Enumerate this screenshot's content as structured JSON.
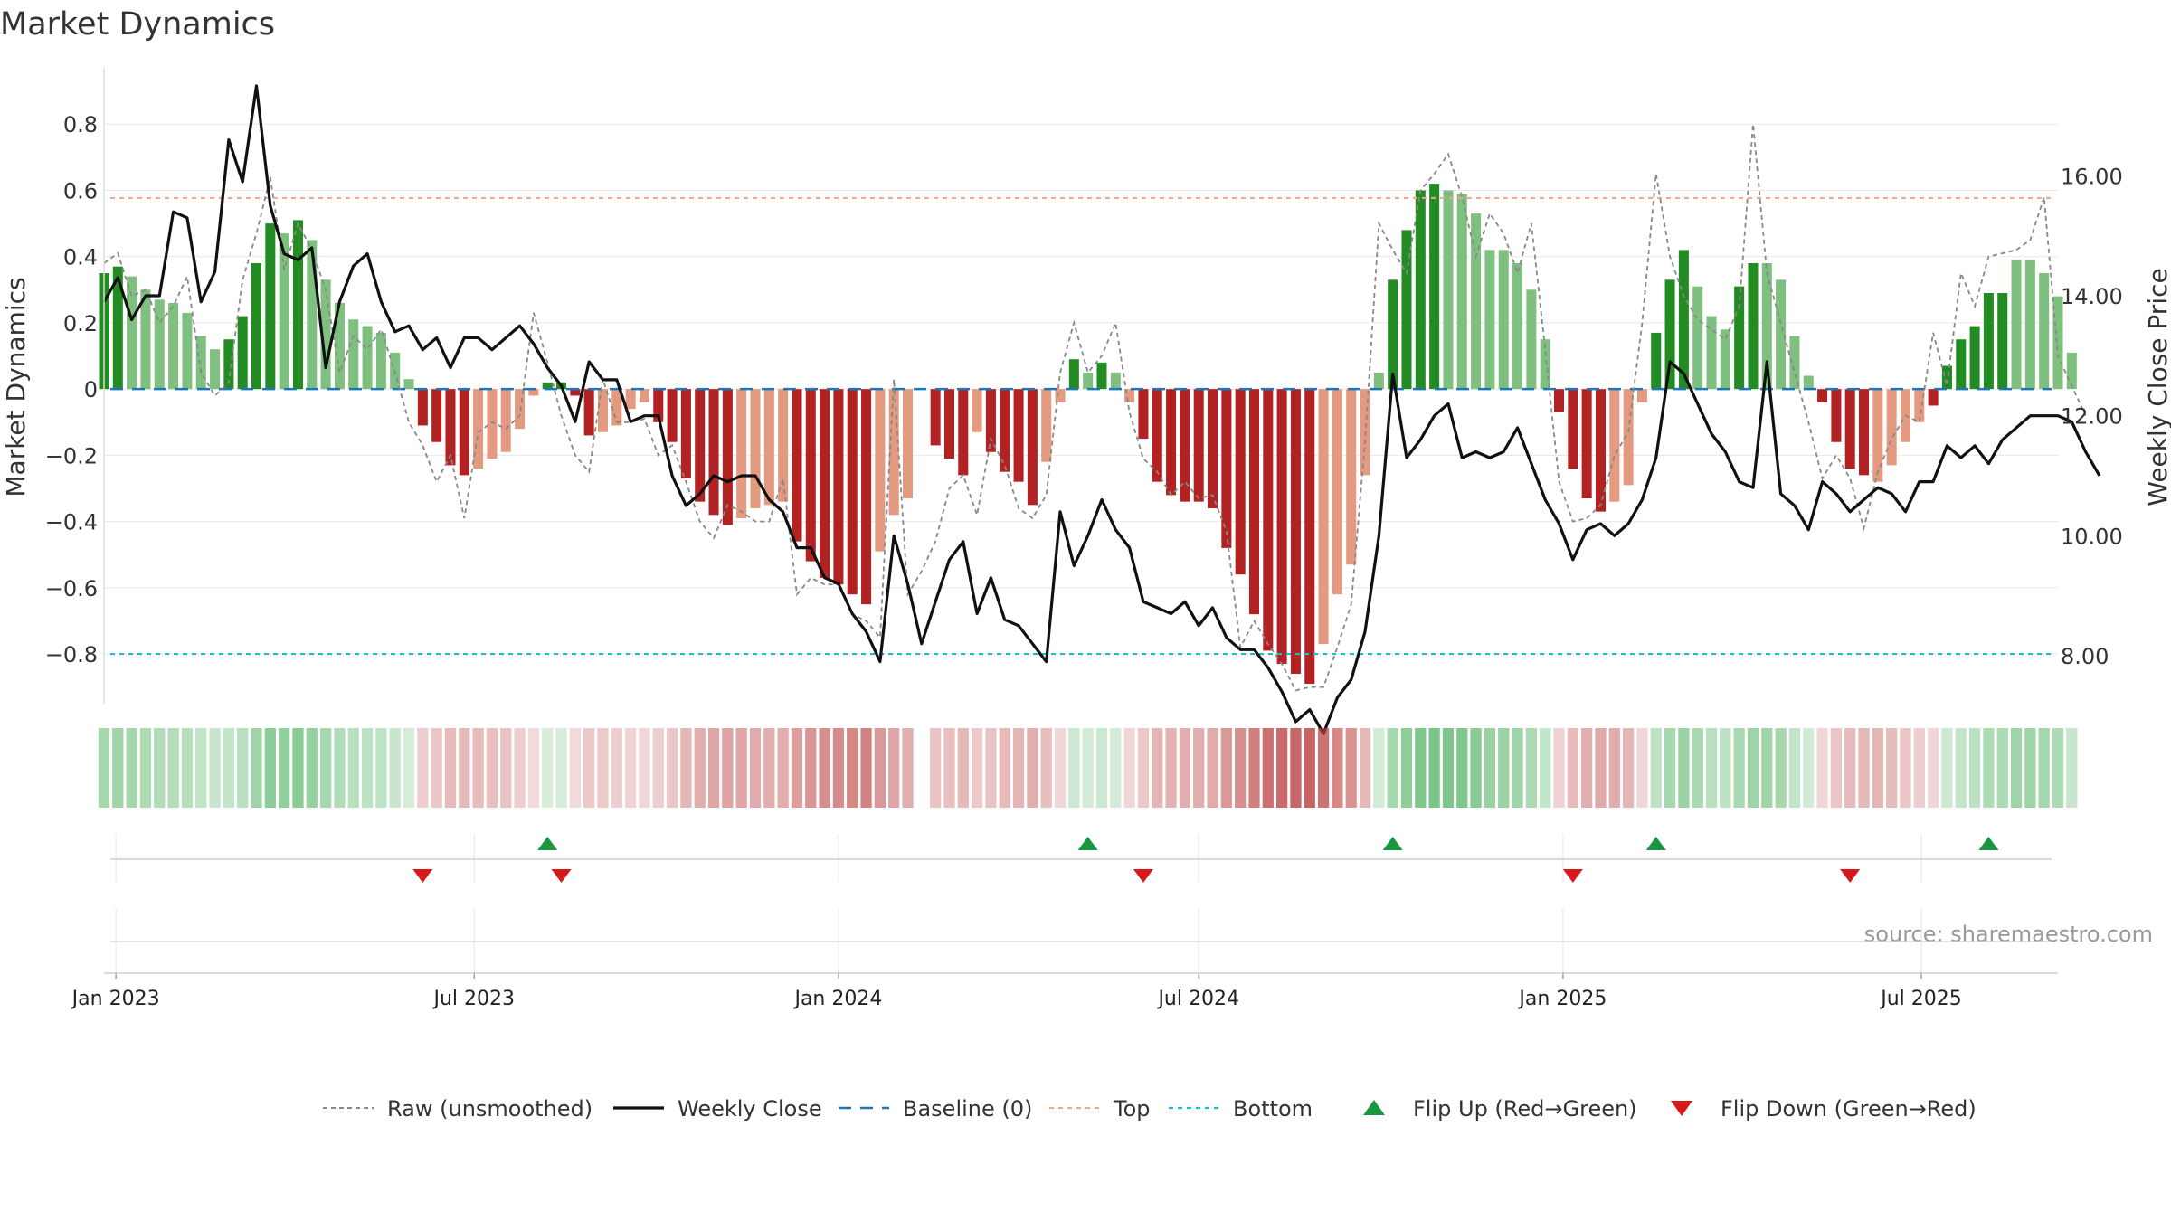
{
  "chart_data": {
    "type": "bar",
    "title": "Market Dynamics",
    "ylabel": "Market Dynamics",
    "y2label": "Weekly Close Price",
    "ylim": [
      -0.95,
      0.97
    ],
    "y2lim": [
      7.2,
      17.8
    ],
    "yticks": [
      {
        "v": 0.8,
        "label": "0.8"
      },
      {
        "v": 0.6,
        "label": "0.6"
      },
      {
        "v": 0.4,
        "label": "0.4"
      },
      {
        "v": 0.2,
        "label": "0.2"
      },
      {
        "v": 0,
        "label": "0"
      },
      {
        "v": -0.2,
        "label": "−0.2"
      },
      {
        "v": -0.4,
        "label": "−0.4"
      },
      {
        "v": -0.6,
        "label": "−0.6"
      },
      {
        "v": -0.8,
        "label": "−0.8"
      }
    ],
    "y2ticks": [
      {
        "v": 16,
        "label": "16.00"
      },
      {
        "v": 14,
        "label": "14.00"
      },
      {
        "v": 12,
        "label": "12.00"
      },
      {
        "v": 10,
        "label": "10.00"
      },
      {
        "v": 8,
        "label": "8.00"
      }
    ],
    "xdomain": [
      "2022-12-26",
      "2025-09-08"
    ],
    "xticks": [
      {
        "date": "2023-01-01",
        "label": "Jan 2023"
      },
      {
        "date": "2023-07-01",
        "label": "Jul 2023"
      },
      {
        "date": "2024-01-01",
        "label": "Jan 2024"
      },
      {
        "date": "2024-07-01",
        "label": "Jul 2024"
      },
      {
        "date": "2025-01-01",
        "label": "Jan 2025"
      },
      {
        "date": "2025-07-01",
        "label": "Jul 2025"
      }
    ],
    "start_date": "2022-12-26",
    "top": 0.577,
    "bottom": -0.8,
    "colors": {
      "strong_green": "#228b22",
      "weak_green": "#7fbf7f",
      "strong_red": "#b22222",
      "weak_red": "#e39a80",
      "close": "#111111",
      "raw": "#888888",
      "baseline": "#1f77b4",
      "top": "#f4a582",
      "bottom": "#17becf",
      "flip_up": "#1a9641",
      "flip_down": "#d7191c"
    },
    "momentum": [
      0.35,
      0.37,
      0.34,
      0.3,
      0.27,
      0.26,
      0.23,
      0.16,
      0.12,
      0.15,
      0.22,
      0.38,
      0.5,
      0.47,
      0.51,
      0.45,
      0.33,
      0.26,
      0.21,
      0.19,
      0.17,
      0.11,
      0.03,
      -0.11,
      -0.16,
      -0.23,
      -0.26,
      -0.24,
      -0.21,
      -0.19,
      -0.12,
      -0.02,
      0.02,
      0.02,
      -0.02,
      -0.14,
      -0.13,
      -0.11,
      -0.06,
      -0.04,
      -0.1,
      -0.16,
      -0.27,
      -0.34,
      -0.38,
      -0.41,
      -0.39,
      -0.36,
      -0.35,
      -0.34,
      -0.46,
      -0.52,
      -0.57,
      -0.59,
      -0.62,
      -0.65,
      -0.49,
      -0.38,
      -0.33,
      0,
      -0.17,
      -0.21,
      -0.26,
      -0.13,
      -0.19,
      -0.25,
      -0.28,
      -0.35,
      -0.22,
      -0.04,
      0.09,
      0.05,
      0.08,
      0.05,
      -0.04,
      -0.15,
      -0.28,
      -0.32,
      -0.34,
      -0.34,
      -0.36,
      -0.48,
      -0.56,
      -0.68,
      -0.79,
      -0.83,
      -0.86,
      -0.89,
      -0.77,
      -0.62,
      -0.53,
      -0.26,
      0.05,
      0.33,
      0.48,
      0.6,
      0.62,
      0.6,
      0.59,
      0.53,
      0.42,
      0.42,
      0.38,
      0.3,
      0.15,
      -0.07,
      -0.24,
      -0.33,
      -0.37,
      -0.34,
      -0.29,
      -0.04,
      0.17,
      0.33,
      0.42,
      0.31,
      0.22,
      0.18,
      0.31,
      0.38,
      0.38,
      0.33,
      0.16,
      0.04,
      -0.04,
      -0.16,
      -0.24,
      -0.26,
      -0.28,
      -0.23,
      -0.16,
      -0.1,
      -0.05,
      0.07,
      0.15,
      0.19,
      0.29,
      0.29,
      0.39,
      0.39,
      0.35,
      0.28,
      0.11
    ],
    "momentum_strength": [
      "s",
      "s",
      "w",
      "w",
      "w",
      "w",
      "w",
      "w",
      "w",
      "s",
      "s",
      "s",
      "s",
      "w",
      "s",
      "w",
      "w",
      "w",
      "w",
      "w",
      "w",
      "w",
      "w",
      "s",
      "s",
      "s",
      "s",
      "w",
      "w",
      "w",
      "w",
      "w",
      "s",
      "s",
      "s",
      "s",
      "w",
      "w",
      "w",
      "w",
      "s",
      "s",
      "s",
      "s",
      "s",
      "s",
      "w",
      "w",
      "w",
      "w",
      "s",
      "s",
      "s",
      "s",
      "s",
      "s",
      "w",
      "w",
      "w",
      "w",
      "s",
      "s",
      "s",
      "w",
      "s",
      "s",
      "s",
      "s",
      "w",
      "w",
      "s",
      "w",
      "s",
      "w",
      "w",
      "s",
      "s",
      "s",
      "s",
      "s",
      "s",
      "s",
      "s",
      "s",
      "s",
      "s",
      "s",
      "s",
      "w",
      "w",
      "w",
      "w",
      "w",
      "s",
      "s",
      "s",
      "s",
      "w",
      "w",
      "w",
      "w",
      "w",
      "w",
      "w",
      "w",
      "s",
      "s",
      "s",
      "s",
      "w",
      "w",
      "w",
      "s",
      "s",
      "s",
      "w",
      "w",
      "w",
      "s",
      "s",
      "w",
      "w",
      "w",
      "w",
      "s",
      "s",
      "s",
      "s",
      "w",
      "w",
      "w",
      "w",
      "s",
      "s",
      "s",
      "s",
      "s",
      "s",
      "w",
      "w",
      "w"
    ],
    "raw": [
      0.38,
      0.41,
      0.28,
      0.3,
      0.2,
      0.25,
      0.34,
      0.05,
      -0.02,
      0.02,
      0.33,
      0.47,
      0.64,
      0.36,
      0.5,
      0.42,
      0.3,
      0.05,
      0.16,
      0.12,
      0.18,
      0.05,
      -0.1,
      -0.17,
      -0.28,
      -0.2,
      -0.39,
      -0.13,
      -0.1,
      -0.12,
      -0.08,
      0.23,
      0.08,
      -0.08,
      -0.2,
      -0.25,
      0.03,
      -0.1,
      -0.1,
      -0.09,
      -0.2,
      -0.17,
      -0.28,
      -0.4,
      -0.45,
      -0.35,
      -0.37,
      -0.4,
      -0.4,
      -0.27,
      -0.62,
      -0.57,
      -0.59,
      -0.59,
      -0.68,
      -0.7,
      -0.75,
      0.03,
      -0.62,
      -0.55,
      -0.46,
      -0.3,
      -0.26,
      -0.38,
      -0.15,
      -0.23,
      -0.36,
      -0.39,
      -0.32,
      0.05,
      0.2,
      0.05,
      0.1,
      0.2,
      -0.07,
      -0.21,
      -0.25,
      -0.32,
      -0.28,
      -0.33,
      -0.32,
      -0.43,
      -0.78,
      -0.7,
      -0.77,
      -0.83,
      -0.91,
      -0.9,
      -0.9,
      -0.78,
      -0.65,
      -0.16,
      0.5,
      0.42,
      0.35,
      0.6,
      0.65,
      0.71,
      0.58,
      0.4,
      0.53,
      0.47,
      0.35,
      0.5,
      0.12,
      -0.28,
      -0.4,
      -0.39,
      -0.35,
      -0.2,
      -0.13,
      0.2,
      0.65,
      0.4,
      0.28,
      0.21,
      0.18,
      0.15,
      0.25,
      0.8,
      0.35,
      0.2,
      0.05,
      -0.1,
      -0.27,
      -0.2,
      -0.27,
      -0.42,
      -0.25,
      -0.15,
      -0.08,
      -0.1,
      0.17,
      0.01,
      0.35,
      0.25,
      0.4,
      0.41,
      0.42,
      0.45,
      0.58,
      0.1,
      0.01,
      -0.08
    ],
    "close": [
      13.9,
      14.3,
      13.6,
      14.0,
      14.0,
      15.4,
      15.3,
      13.9,
      14.4,
      16.6,
      15.9,
      17.5,
      15.5,
      14.7,
      14.6,
      14.8,
      12.8,
      13.9,
      14.5,
      14.7,
      13.9,
      13.4,
      13.5,
      13.1,
      13.3,
      12.8,
      13.3,
      13.3,
      13.1,
      13.3,
      13.5,
      13.2,
      12.8,
      12.5,
      11.9,
      12.9,
      12.6,
      12.6,
      11.9,
      12.0,
      12.0,
      11.0,
      10.5,
      10.7,
      11.0,
      10.9,
      11.0,
      11.0,
      10.6,
      10.4,
      9.8,
      9.8,
      9.3,
      9.2,
      8.7,
      8.4,
      7.9,
      10.0,
      9.2,
      8.2,
      8.9,
      9.6,
      9.9,
      8.7,
      9.3,
      8.6,
      8.5,
      8.2,
      7.9,
      10.4,
      9.5,
      10.0,
      10.6,
      10.1,
      9.8,
      8.9,
      8.8,
      8.7,
      8.9,
      8.5,
      8.8,
      8.3,
      8.1,
      8.1,
      7.8,
      7.4,
      6.9,
      7.1,
      6.7,
      7.3,
      7.6,
      8.4,
      10.0,
      12.7,
      11.3,
      11.6,
      12.0,
      12.2,
      11.3,
      11.4,
      11.3,
      11.4,
      11.8,
      11.2,
      10.6,
      10.2,
      9.6,
      10.1,
      10.2,
      10.0,
      10.2,
      10.6,
      11.3,
      12.9,
      12.7,
      12.2,
      11.7,
      11.4,
      10.9,
      10.8,
      12.9,
      10.7,
      10.5,
      10.1,
      10.9,
      10.7,
      10.4,
      10.6,
      10.8,
      10.7,
      10.4,
      10.9,
      10.9,
      11.5,
      11.3,
      11.5,
      11.2,
      11.6,
      11.8,
      12.0,
      12.0,
      12.0,
      11.9,
      11.4,
      11.0
    ],
    "flip_up": [
      32,
      71,
      93,
      112,
      136
    ],
    "flip_down": [
      23,
      33,
      75,
      106,
      126
    ],
    "legend": [
      {
        "key": "raw",
        "label": "Raw (unsmoothed)"
      },
      {
        "key": "close",
        "label": "Weekly Close"
      },
      {
        "key": "baseline",
        "label": "Baseline (0)"
      },
      {
        "key": "top",
        "label": "Top"
      },
      {
        "key": "bottom",
        "label": "Bottom"
      },
      {
        "key": "flip_up",
        "label": "Flip Up (Red→Green)"
      },
      {
        "key": "flip_down",
        "label": "Flip Down (Green→Red)"
      }
    ],
    "legend_position": "bottom-center",
    "grid": true,
    "source": "source: sharemaestro.com"
  }
}
